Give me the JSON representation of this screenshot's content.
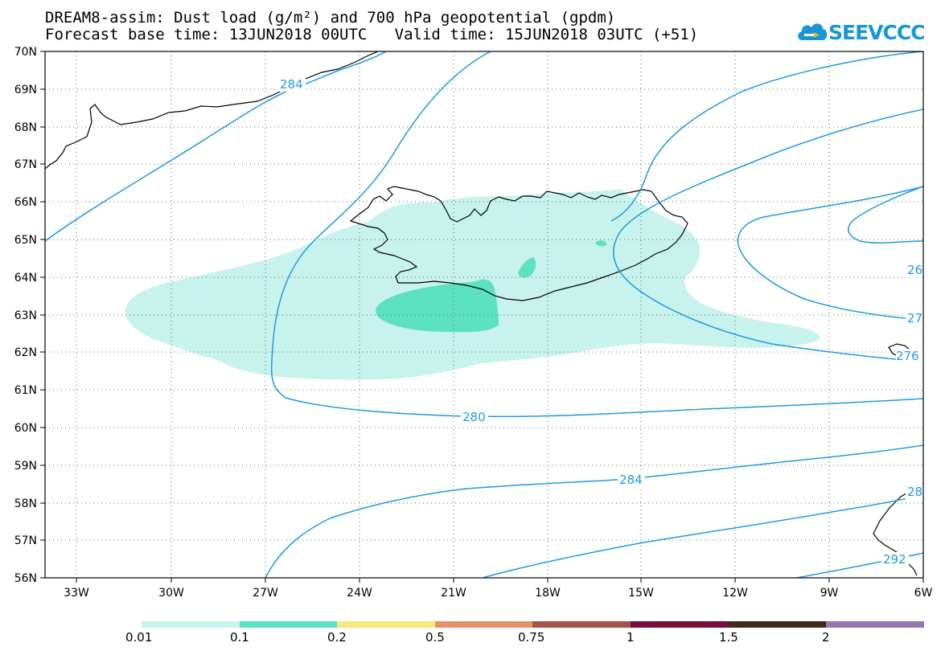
{
  "header": {
    "line1": "DREAM8-assim: Dust load (g/m²) and 700 hPa geopotential (gpdm)",
    "line2": "Forecast base time: 13JUN2018 00UTC   Valid time: 15JUN2018 03UTC (+51)"
  },
  "logo": {
    "text": "SEEVCCC",
    "icon": "cloud-icon",
    "color": "#1796d8"
  },
  "map": {
    "lat_labels": [
      "70N",
      "69N",
      "68N",
      "67N",
      "66N",
      "65N",
      "64N",
      "63N",
      "62N",
      "61N",
      "60N",
      "59N",
      "58N",
      "57N",
      "56N"
    ],
    "lon_labels": [
      "33W",
      "30W",
      "27W",
      "24W",
      "21W",
      "18W",
      "15W",
      "12W",
      "9W",
      "6W"
    ],
    "contour_labels": [
      "284",
      "280",
      "284",
      "26",
      "27",
      "276",
      "28",
      "292"
    ],
    "contour_color": "#1f9be0"
  },
  "colorbar": {
    "colors": [
      "#c8f2ec",
      "#5ce2c0",
      "#f6e87a",
      "#e8906a",
      "#a5544c",
      "#7c0e3a",
      "#3e2c1a",
      "#9677ac"
    ],
    "labels": [
      "0.01",
      "0.1",
      "0.2",
      "0.5",
      "0.75",
      "1",
      "1.5",
      "2"
    ]
  }
}
